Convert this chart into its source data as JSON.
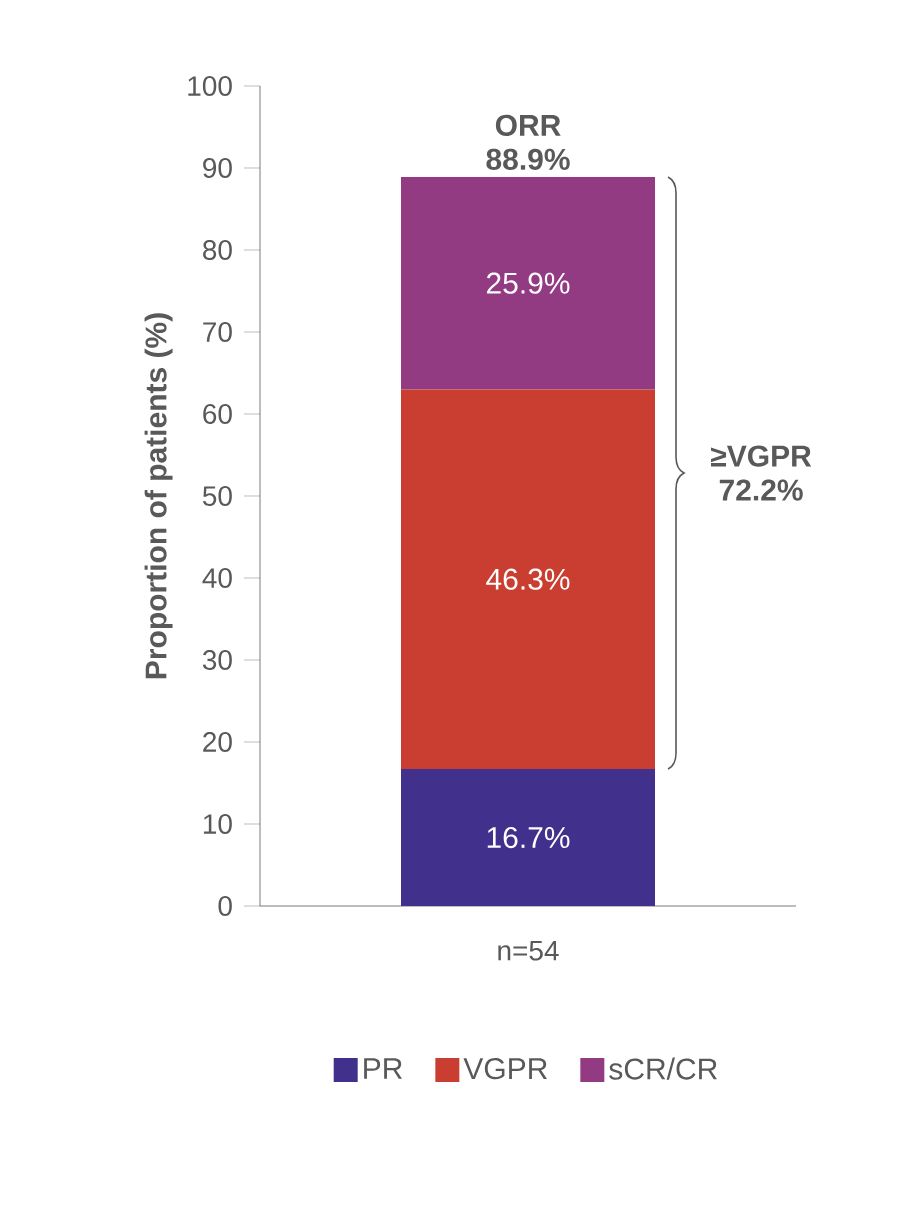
{
  "chart_data": {
    "type": "bar",
    "stacked": true,
    "ylabel": "Proportion of patients (%)",
    "categories": [
      "n=54"
    ],
    "series": [
      {
        "name": "PR",
        "color": "#41318c",
        "values": [
          16.7
        ],
        "value_labels": [
          "16.7%"
        ]
      },
      {
        "name": "VGPR",
        "color": "#c93e30",
        "values": [
          46.3
        ],
        "value_labels": [
          "46.3%"
        ]
      },
      {
        "name": "sCR/CR",
        "color": "#923a82",
        "values": [
          25.9
        ],
        "value_labels": [
          "25.9%"
        ]
      }
    ],
    "totals": [
      "ORR 88.9%"
    ],
    "annotations": [
      "≥VGPR 72.2%"
    ],
    "ylim": [
      0,
      100
    ],
    "yticks": [
      0,
      10,
      20,
      30,
      40,
      50,
      60,
      70,
      80,
      90,
      100
    ],
    "legend": "bottom"
  }
}
